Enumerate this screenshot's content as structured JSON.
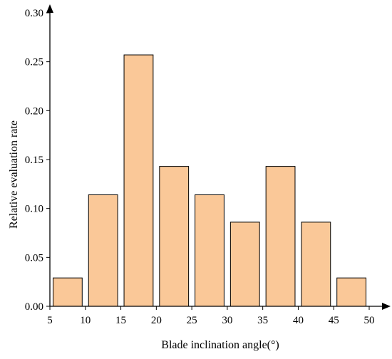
{
  "chart_data": {
    "type": "bar",
    "title": "",
    "xlabel": "Blade inclination angle(°)",
    "ylabel": "Relative evaluation rate",
    "xlim": [
      5,
      50
    ],
    "ylim": [
      0,
      0.3
    ],
    "x_ticks": [
      "5",
      "10",
      "15",
      "20",
      "25",
      "30",
      "35",
      "40",
      "45",
      "50"
    ],
    "y_ticks": [
      "0.00",
      "0.05",
      "0.10",
      "0.15",
      "0.20",
      "0.25",
      "0.30"
    ],
    "bins": [
      {
        "from": 5,
        "to": 10,
        "value": 0.029
      },
      {
        "from": 10,
        "to": 15,
        "value": 0.114
      },
      {
        "from": 15,
        "to": 20,
        "value": 0.257
      },
      {
        "from": 20,
        "to": 25,
        "value": 0.143
      },
      {
        "from": 25,
        "to": 30,
        "value": 0.114
      },
      {
        "from": 30,
        "to": 35,
        "value": 0.086
      },
      {
        "from": 35,
        "to": 40,
        "value": 0.143
      },
      {
        "from": 40,
        "to": 45,
        "value": 0.086
      },
      {
        "from": 45,
        "to": 50,
        "value": 0.029
      }
    ],
    "grid": false,
    "legend": "none",
    "bar_color": "#fac898",
    "bar_edge_color": "#000000"
  }
}
